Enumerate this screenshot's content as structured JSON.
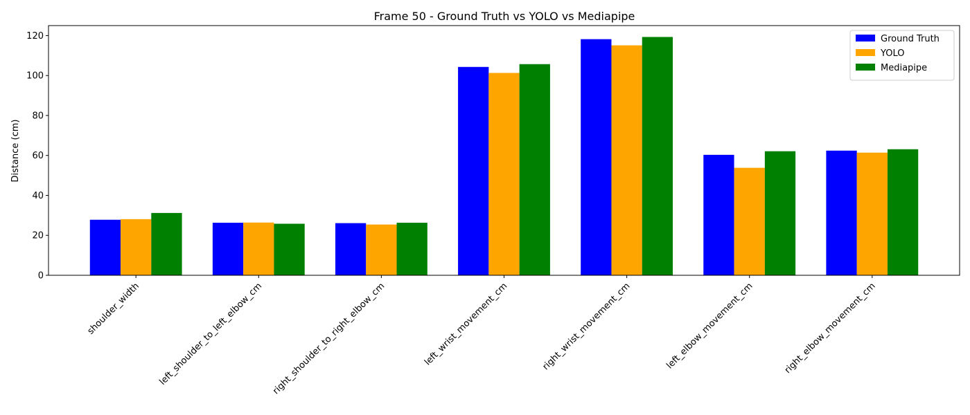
{
  "chart_data": {
    "type": "bar",
    "title": "Frame 50 - Ground Truth vs YOLO vs Mediapipe",
    "xlabel": "",
    "ylabel": "Distance (cm)",
    "ylim": [
      0,
      125
    ],
    "yticks": [
      0,
      20,
      40,
      60,
      80,
      100,
      120
    ],
    "grid": false,
    "legend_position": "top-right",
    "categories": [
      "shoulder_width",
      "left_shoulder_to_left_elbow_cm",
      "right_shoulder_to_right_elbow_cm",
      "left_wrist_movement_cm",
      "right_wrist_movement_cm",
      "left_elbow_movement_cm",
      "right_elbow_movement_cm"
    ],
    "series": [
      {
        "name": "Ground Truth",
        "color": "#0000ff",
        "values": [
          27.8,
          26.3,
          26.1,
          104.3,
          118.2,
          60.3,
          62.4
        ]
      },
      {
        "name": "YOLO",
        "color": "#ffa500",
        "values": [
          28.1,
          26.4,
          25.4,
          101.3,
          115.1,
          53.8,
          61.4
        ]
      },
      {
        "name": "Mediapipe",
        "color": "#008000",
        "values": [
          31.2,
          25.8,
          26.3,
          105.7,
          119.3,
          62.1,
          63.1
        ]
      }
    ]
  }
}
